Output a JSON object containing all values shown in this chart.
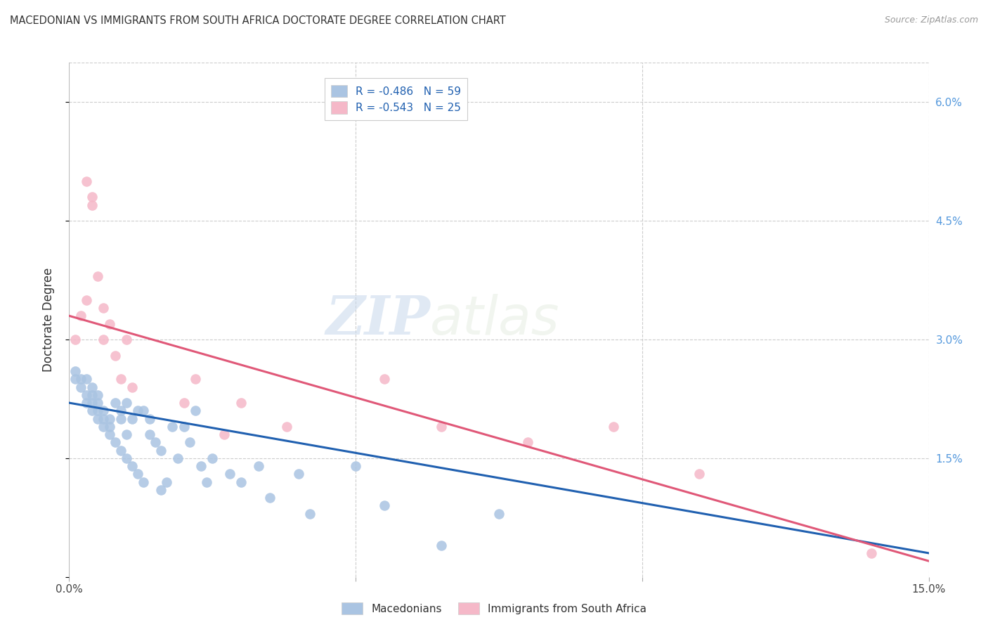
{
  "title": "MACEDONIAN VS IMMIGRANTS FROM SOUTH AFRICA DOCTORATE DEGREE CORRELATION CHART",
  "source": "Source: ZipAtlas.com",
  "ylabel": "Doctorate Degree",
  "xlim": [
    0.0,
    0.15
  ],
  "ylim": [
    0.0,
    0.065
  ],
  "blue_R": "-0.486",
  "blue_N": "59",
  "pink_R": "-0.543",
  "pink_N": "25",
  "blue_color": "#aac4e2",
  "pink_color": "#f5b8c8",
  "blue_line_color": "#2060b0",
  "pink_line_color": "#e05878",
  "watermark_zip": "ZIP",
  "watermark_atlas": "atlas",
  "blue_scatter_x": [
    0.001,
    0.001,
    0.002,
    0.002,
    0.003,
    0.003,
    0.003,
    0.004,
    0.004,
    0.004,
    0.004,
    0.005,
    0.005,
    0.005,
    0.005,
    0.006,
    0.006,
    0.006,
    0.007,
    0.007,
    0.007,
    0.008,
    0.008,
    0.009,
    0.009,
    0.009,
    0.01,
    0.01,
    0.01,
    0.011,
    0.011,
    0.012,
    0.012,
    0.013,
    0.013,
    0.014,
    0.014,
    0.015,
    0.016,
    0.016,
    0.017,
    0.018,
    0.019,
    0.02,
    0.021,
    0.022,
    0.023,
    0.024,
    0.025,
    0.028,
    0.03,
    0.033,
    0.035,
    0.04,
    0.042,
    0.05,
    0.055,
    0.065,
    0.075
  ],
  "blue_scatter_y": [
    0.025,
    0.026,
    0.024,
    0.025,
    0.022,
    0.023,
    0.025,
    0.021,
    0.022,
    0.023,
    0.024,
    0.02,
    0.021,
    0.022,
    0.023,
    0.019,
    0.02,
    0.021,
    0.018,
    0.019,
    0.02,
    0.017,
    0.022,
    0.016,
    0.02,
    0.021,
    0.015,
    0.018,
    0.022,
    0.014,
    0.02,
    0.013,
    0.021,
    0.012,
    0.021,
    0.018,
    0.02,
    0.017,
    0.011,
    0.016,
    0.012,
    0.019,
    0.015,
    0.019,
    0.017,
    0.021,
    0.014,
    0.012,
    0.015,
    0.013,
    0.012,
    0.014,
    0.01,
    0.013,
    0.008,
    0.014,
    0.009,
    0.004,
    0.008
  ],
  "pink_scatter_x": [
    0.001,
    0.002,
    0.003,
    0.003,
    0.004,
    0.004,
    0.005,
    0.006,
    0.006,
    0.007,
    0.008,
    0.009,
    0.01,
    0.011,
    0.02,
    0.022,
    0.027,
    0.03,
    0.038,
    0.055,
    0.065,
    0.08,
    0.095,
    0.11,
    0.14
  ],
  "pink_scatter_y": [
    0.03,
    0.033,
    0.035,
    0.05,
    0.047,
    0.048,
    0.038,
    0.03,
    0.034,
    0.032,
    0.028,
    0.025,
    0.03,
    0.024,
    0.022,
    0.025,
    0.018,
    0.022,
    0.019,
    0.025,
    0.019,
    0.017,
    0.019,
    0.013,
    0.003
  ],
  "blue_line_x": [
    0.0,
    0.15
  ],
  "blue_line_y": [
    0.022,
    0.003
  ],
  "pink_line_x": [
    0.0,
    0.15
  ],
  "pink_line_y": [
    0.033,
    0.002
  ]
}
